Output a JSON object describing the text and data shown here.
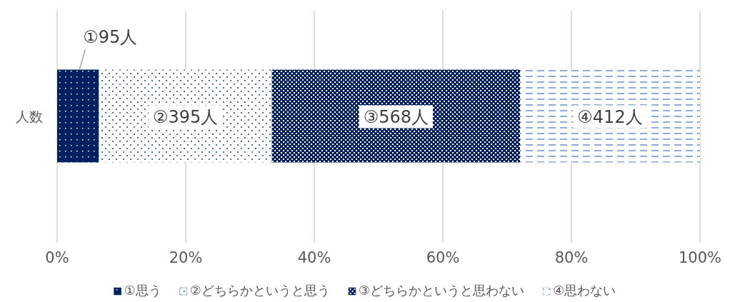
{
  "chart_data": {
    "type": "bar",
    "orientation": "horizontal",
    "stacked": true,
    "categories": [
      "人数"
    ],
    "series": [
      {
        "name": "①思う",
        "color": "#002060",
        "values": [
          6.5
        ],
        "value_labels": [
          "①95人"
        ]
      },
      {
        "name": "②どちらかというと思う",
        "color": "#4472c4",
        "values": [
          26.9
        ],
        "value_labels": [
          "②395人"
        ]
      },
      {
        "name": "③どちらかというと思わない",
        "color": "#002060",
        "values": [
          38.6
        ],
        "value_labels": [
          "③568人"
        ]
      },
      {
        "name": "④思わない",
        "color": "#8faadc",
        "values": [
          28.0
        ],
        "value_labels": [
          "④412人"
        ]
      }
    ],
    "xlim": [
      0,
      100
    ],
    "xticks": [
      {
        "value": 0,
        "label": "0%"
      },
      {
        "value": 20,
        "label": "20%"
      },
      {
        "value": 40,
        "label": "40%"
      },
      {
        "value": 60,
        "label": "60%"
      },
      {
        "value": 80,
        "label": "80%"
      },
      {
        "value": 100,
        "label": "100%"
      }
    ],
    "grid": "x",
    "legend": "bottom"
  }
}
